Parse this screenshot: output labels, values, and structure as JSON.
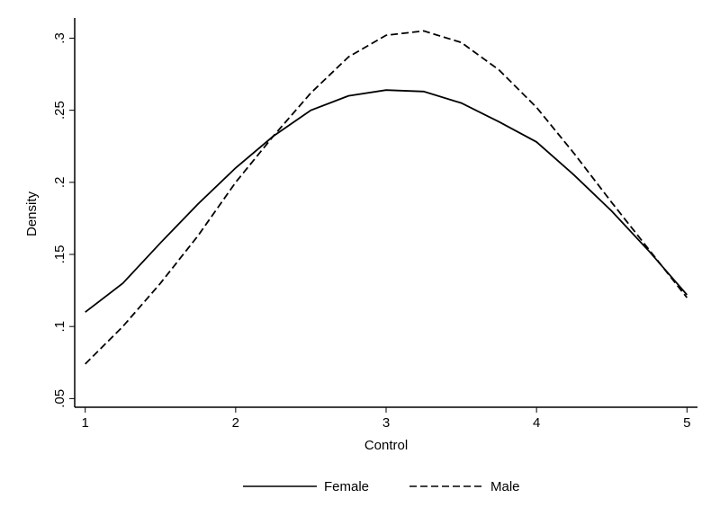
{
  "chart_data": {
    "type": "line",
    "x_label": "Control",
    "y_label": "Density",
    "x": [
      1,
      1.25,
      1.5,
      1.75,
      2,
      2.25,
      2.5,
      2.75,
      3,
      3.25,
      3.5,
      3.75,
      4,
      4.25,
      4.5,
      4.75,
      5
    ],
    "series": [
      {
        "name": "Female",
        "color": "#000000",
        "dash": "solid",
        "values": [
          0.11,
          0.13,
          0.158,
          0.185,
          0.21,
          0.232,
          0.25,
          0.26,
          0.264,
          0.263,
          0.255,
          0.242,
          0.228,
          0.205,
          0.18,
          0.152,
          0.122
        ]
      },
      {
        "name": "Male",
        "color": "#000000",
        "dash": "dashed",
        "values": [
          0.074,
          0.1,
          0.13,
          0.163,
          0.2,
          0.232,
          0.262,
          0.287,
          0.302,
          0.305,
          0.297,
          0.278,
          0.252,
          0.22,
          0.186,
          0.153,
          0.12
        ]
      }
    ],
    "xlim": [
      0.93,
      5.07
    ],
    "xticks": [
      1,
      2,
      3,
      4,
      5
    ],
    "ylim": [
      0.044,
      0.314
    ],
    "yticks": [
      {
        "value": 0.05,
        "label": ".05"
      },
      {
        "value": 0.1,
        "label": ".1"
      },
      {
        "value": 0.15,
        "label": ".15"
      },
      {
        "value": 0.2,
        "label": ".2"
      },
      {
        "value": 0.25,
        "label": ".25"
      },
      {
        "value": 0.3,
        "label": ".3"
      }
    ],
    "grid": false,
    "legend": "bottom"
  }
}
